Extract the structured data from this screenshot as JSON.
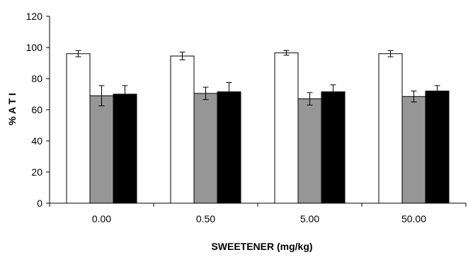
{
  "chart_data": {
    "type": "bar",
    "xlabel": "SWEETENER (mg/kg)",
    "ylabel": "% A T I",
    "ylim": [
      0,
      120
    ],
    "yticks": [
      0,
      20,
      40,
      60,
      80,
      100,
      120
    ],
    "categories": [
      "0.00",
      "0.50",
      "5.00",
      "50.00"
    ],
    "grid": false,
    "legend": "none",
    "series": [
      {
        "color": "#ffffff",
        "values": [
          96,
          94.5,
          96.5,
          96
        ],
        "errors": [
          2,
          2.5,
          1.5,
          2
        ]
      },
      {
        "color": "#969696",
        "values": [
          69,
          70.5,
          67,
          68.5
        ],
        "errors": [
          6.5,
          4,
          4,
          3.5
        ]
      },
      {
        "color": "#000000",
        "values": [
          70,
          71.5,
          71.5,
          72
        ],
        "errors": [
          5.5,
          6,
          4.5,
          3.5
        ]
      }
    ]
  }
}
